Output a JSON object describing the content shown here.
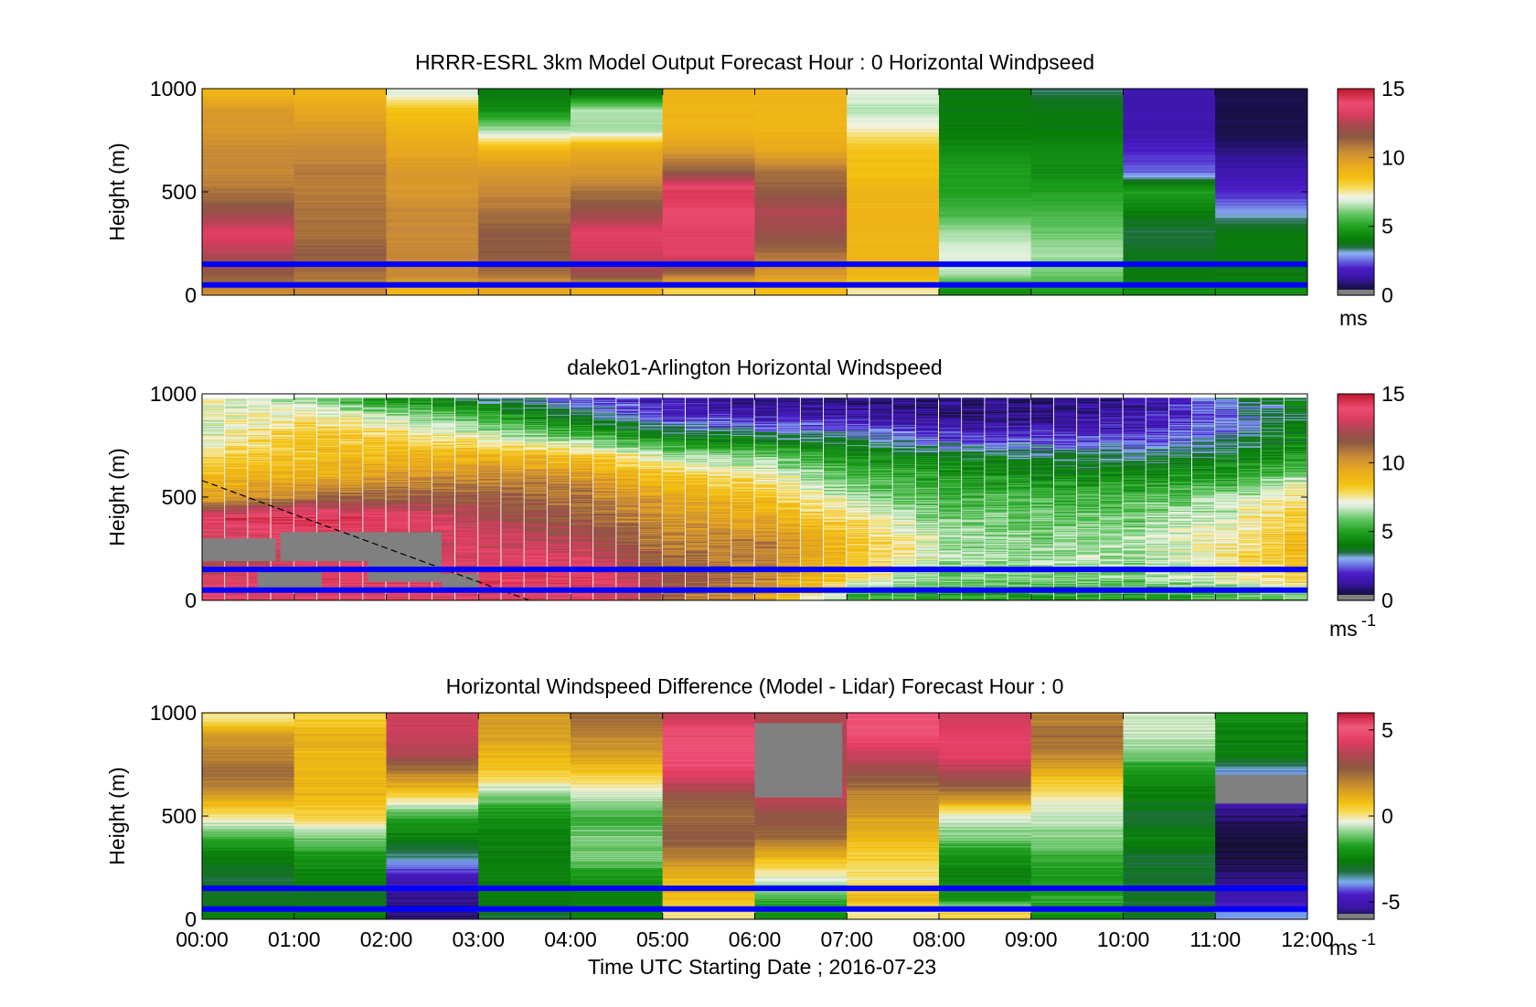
{
  "chart_data": [
    {
      "type": "heatmap",
      "title": "HRRR-ESRL 3km Model Output   Forecast Hour : 0 Horizontal Windpseed",
      "xlabel": "",
      "ylabel": "Height (m)",
      "ylim": [
        0,
        1000
      ],
      "yticks": [
        "0",
        "500",
        "1000"
      ],
      "xlim": [
        0,
        12
      ],
      "colorbar": {
        "ticks": [
          "0",
          "5",
          "10",
          "15"
        ],
        "range": [
          0,
          15
        ],
        "unit_label": "ms",
        "unit_superscript": ""
      },
      "colormap": "windspeed",
      "levels": [
        0,
        50,
        150,
        250,
        350,
        450,
        550,
        650,
        750,
        850,
        950,
        1000
      ],
      "columns_x": [
        0,
        1,
        2,
        3,
        4,
        5,
        6,
        7,
        8,
        9,
        10,
        11,
        12
      ],
      "values_by_column": [
        [
          10.5,
          11.5,
          12.5,
          13.5,
          12.0,
          11.0,
          10.5,
          10.5,
          10.0,
          10.0,
          9.0
        ],
        [
          10.5,
          11.0,
          11.5,
          11.0,
          11.0,
          10.8,
          10.8,
          10.5,
          10.0,
          9.5,
          9.0
        ],
        [
          9.0,
          10.5,
          10.5,
          10.5,
          10.5,
          10.0,
          10.0,
          9.5,
          9.0,
          8.5,
          7.0
        ],
        [
          9.5,
          11.0,
          11.5,
          11.5,
          11.0,
          10.5,
          10.0,
          9.0,
          6.5,
          4.5,
          4.0
        ],
        [
          9.0,
          12.0,
          13.0,
          13.5,
          12.0,
          11.0,
          10.0,
          9.5,
          6.5,
          6.5,
          4.0
        ],
        [
          8.0,
          11.0,
          13.5,
          13.5,
          14.0,
          14.5,
          11.5,
          10.0,
          9.0,
          9.0,
          9.0
        ],
        [
          8.5,
          10.0,
          11.0,
          12.0,
          12.5,
          11.5,
          11.0,
          9.5,
          9.0,
          9.0,
          9.0
        ],
        [
          7.5,
          9.0,
          9.0,
          9.0,
          9.0,
          9.0,
          8.5,
          8.5,
          7.5,
          6.5,
          7.0
        ],
        [
          4.5,
          6.5,
          7.0,
          6.5,
          5.5,
          5.0,
          5.0,
          4.5,
          4.0,
          4.0,
          4.0
        ],
        [
          5.0,
          6.0,
          6.5,
          6.0,
          5.5,
          5.0,
          4.5,
          4.5,
          4.0,
          4.0,
          3.5
        ],
        [
          4.5,
          4.0,
          3.8,
          3.5,
          4.0,
          5.0,
          2.5,
          2.0,
          1.5,
          1.5,
          1.5
        ],
        [
          4.5,
          4.0,
          4.0,
          4.0,
          3.0,
          2.0,
          1.5,
          1.0,
          0.5,
          0.5,
          0.5
        ]
      ],
      "hlines": [
        150,
        50
      ],
      "hline_color": "#0000ff"
    },
    {
      "type": "heatmap",
      "title": "dalek01-Arlington  Horizontal Windspeed",
      "xlabel": "",
      "ylabel": "Height (m)",
      "ylim": [
        0,
        1000
      ],
      "yticks": [
        "0",
        "500",
        "1000"
      ],
      "xlim": [
        0,
        12
      ],
      "colorbar": {
        "ticks": [
          "0",
          "5",
          "10",
          "15"
        ],
        "range": [
          0,
          15
        ],
        "unit_label": "ms",
        "unit_superscript": "-1"
      },
      "colormap": "windspeed",
      "profile_start": 0,
      "profile_step": 0.25,
      "data_end": 11.9,
      "levels": [
        0,
        50,
        150,
        250,
        350,
        450,
        550,
        650,
        750,
        850,
        950,
        1000
      ],
      "profile_anchors_x": [
        0,
        1,
        2,
        3,
        4,
        5,
        6,
        7,
        8,
        9,
        10,
        11,
        11.9
      ],
      "profile_anchors": [
        [
          13.5,
          13.5,
          12.0,
          13.0,
          14.0,
          9.5,
          9.0,
          8.0,
          7.0,
          7.0,
          7.0
        ],
        [
          13.5,
          14.0,
          13.0,
          13.5,
          14.5,
          11.0,
          9.0,
          8.5,
          8.5,
          7.5,
          6.5
        ],
        [
          13.5,
          14.0,
          13.0,
          13.5,
          14.0,
          11.5,
          10.0,
          9.0,
          8.0,
          6.5,
          4.5
        ],
        [
          13.5,
          14.0,
          13.5,
          13.0,
          12.5,
          11.5,
          10.5,
          9.0,
          7.0,
          5.0,
          3.5
        ],
        [
          13.5,
          14.0,
          13.5,
          12.5,
          11.5,
          11.0,
          10.0,
          8.5,
          5.5,
          3.5,
          2.5
        ],
        [
          11.5,
          12.0,
          11.0,
          10.5,
          10.0,
          9.5,
          8.5,
          6.5,
          4.0,
          2.0,
          1.5
        ],
        [
          9.5,
          10.5,
          10.5,
          10.5,
          9.5,
          8.5,
          7.5,
          6.0,
          3.5,
          1.5,
          1.0
        ],
        [
          5.5,
          7.5,
          8.5,
          8.5,
          7.5,
          6.5,
          5.5,
          4.5,
          3.0,
          1.5,
          1.0
        ],
        [
          5.0,
          6.0,
          6.5,
          6.5,
          6.0,
          5.5,
          5.0,
          4.0,
          2.0,
          1.0,
          1.0
        ],
        [
          5.0,
          6.0,
          6.5,
          6.0,
          6.0,
          5.5,
          4.5,
          3.5,
          2.0,
          1.0,
          1.0
        ],
        [
          5.0,
          6.0,
          6.5,
          6.5,
          6.0,
          5.5,
          4.5,
          3.5,
          2.0,
          1.5,
          1.0
        ],
        [
          5.5,
          7.0,
          7.5,
          7.5,
          7.0,
          6.5,
          5.0,
          4.0,
          3.0,
          2.5,
          3.0
        ],
        [
          6.0,
          8.5,
          9.0,
          9.0,
          8.5,
          8.0,
          6.5,
          5.0,
          4.5,
          4.0,
          4.0
        ]
      ],
      "missing_blocks": [
        {
          "x": [
            0.0,
            0.8
          ],
          "y": [
            190,
            300
          ]
        },
        {
          "x": [
            0.85,
            2.6
          ],
          "y": [
            190,
            330
          ]
        },
        {
          "x": [
            1.8,
            2.6
          ],
          "y": [
            90,
            190
          ]
        },
        {
          "x": [
            0.6,
            1.3
          ],
          "y": [
            50,
            160
          ]
        },
        {
          "x": [
            2.6,
            3.0
          ],
          "y": [
            50,
            130
          ]
        }
      ],
      "annotation_line": {
        "x": [
          0.0,
          3.55
        ],
        "y": [
          580,
          0
        ],
        "style": "dashed"
      },
      "hlines": [
        150,
        50
      ],
      "hline_color": "#0000ff"
    },
    {
      "type": "heatmap",
      "title": "Horizontal Windspeed Difference (Model - Lidar) Forecast Hour : 0",
      "xlabel": "Time UTC  Starting Date ; 2016-07-23",
      "ylabel": "Height (m)",
      "ylim": [
        0,
        1000
      ],
      "yticks": [
        "0",
        "500",
        "1000"
      ],
      "xlim": [
        0,
        12
      ],
      "xticks": [
        "00:00",
        "01:00",
        "02:00",
        "03:00",
        "04:00",
        "05:00",
        "06:00",
        "07:00",
        "08:00",
        "09:00",
        "10:00",
        "11:00",
        "12:00"
      ],
      "colorbar": {
        "ticks": [
          "-5",
          "0",
          "5"
        ],
        "range": [
          -6,
          6
        ],
        "unit_label": "ms",
        "unit_superscript": "-1"
      },
      "colormap": "difference",
      "levels": [
        0,
        50,
        150,
        250,
        350,
        450,
        550,
        650,
        750,
        850,
        950,
        1000
      ],
      "columns_x": [
        0,
        1,
        2,
        3,
        4,
        5,
        6,
        7,
        8,
        9,
        10,
        11,
        12
      ],
      "values_by_column": [
        [
          -2.5,
          -3.0,
          -3.0,
          -2.5,
          -1.5,
          0.0,
          1.5,
          2.5,
          2.0,
          1.5,
          0.0
        ],
        [
          -2.5,
          -3.0,
          -2.5,
          -2.0,
          -1.0,
          0.5,
          1.0,
          1.0,
          1.0,
          1.0,
          0.5
        ],
        [
          -5.5,
          -5.5,
          -5.0,
          -3.5,
          -2.5,
          -1.5,
          0.5,
          2.0,
          3.5,
          4.0,
          4.0
        ],
        [
          -3.0,
          -2.5,
          -2.5,
          -2.5,
          -2.5,
          -2.0,
          -1.0,
          0.5,
          1.0,
          1.5,
          1.5
        ],
        [
          -2.5,
          -2.5,
          -2.0,
          -1.0,
          -1.0,
          -1.5,
          -0.5,
          0.5,
          1.5,
          2.0,
          2.5
        ],
        [
          0.0,
          1.0,
          1.0,
          2.0,
          3.0,
          2.5,
          3.0,
          4.5,
          5.0,
          5.0,
          4.0
        ],
        [
          -2.0,
          -1.5,
          -0.5,
          1.0,
          2.5,
          3.0,
          4.0,
          3.5,
          3.5,
          3.5,
          3.5
        ],
        [
          0.0,
          1.0,
          0.0,
          0.5,
          1.0,
          1.5,
          2.0,
          3.0,
          4.0,
          5.0,
          5.0
        ],
        [
          0.5,
          -2.0,
          -2.5,
          -2.0,
          -1.0,
          -0.5,
          2.0,
          3.5,
          4.5,
          4.5,
          4.0
        ],
        [
          -2.0,
          -1.5,
          -2.0,
          -1.5,
          -1.0,
          -0.5,
          0.0,
          1.0,
          2.0,
          2.5,
          2.0
        ],
        [
          -3.0,
          -3.0,
          -3.0,
          -3.0,
          -2.5,
          -3.0,
          -2.5,
          -2.0,
          -1.0,
          -0.5,
          -0.5
        ],
        [
          -4.0,
          -5.0,
          -5.5,
          -6.0,
          -6.0,
          -5.5,
          -5.0,
          -4.0,
          -2.5,
          -2.5,
          -2.0
        ]
      ],
      "missing_blocks": [
        {
          "x": [
            6.0,
            6.95
          ],
          "y": [
            590,
            950
          ]
        },
        {
          "x": [
            11.0,
            12.0
          ],
          "y": [
            560,
            700
          ]
        }
      ],
      "hlines": [
        150,
        50
      ],
      "hline_color": "#0000ff"
    }
  ],
  "colormaps": {
    "windspeed": {
      "stops": [
        [
          0.0,
          "#14102e"
        ],
        [
          0.6,
          "#1a1250"
        ],
        [
          1.3,
          "#3a16a6"
        ],
        [
          2.0,
          "#4c1cc8"
        ],
        [
          2.6,
          "#6a72e2"
        ],
        [
          3.1,
          "#8fb4f4"
        ],
        [
          3.5,
          "#1f6e40"
        ],
        [
          4.0,
          "#087a08"
        ],
        [
          5.0,
          "#1ea01e"
        ],
        [
          6.0,
          "#6ac86a"
        ],
        [
          6.8,
          "#d2ecd0"
        ],
        [
          7.2,
          "#f2f2e6"
        ],
        [
          7.8,
          "#f5dc60"
        ],
        [
          8.5,
          "#f4c010"
        ],
        [
          9.5,
          "#e9a81e"
        ],
        [
          10.5,
          "#c88a38"
        ],
        [
          11.5,
          "#8c5a42"
        ],
        [
          12.3,
          "#a44a4e"
        ],
        [
          13.2,
          "#dc3c60"
        ],
        [
          14.0,
          "#ec4c70"
        ],
        [
          15.0,
          "#c01830"
        ]
      ],
      "missing_color": "#808080"
    },
    "difference": {
      "stops": [
        [
          -6.0,
          "#14102e"
        ],
        [
          -5.3,
          "#3a16a6"
        ],
        [
          -4.5,
          "#4c1cc8"
        ],
        [
          -3.8,
          "#7db0f0"
        ],
        [
          -3.2,
          "#1f6e40"
        ],
        [
          -2.6,
          "#087a08"
        ],
        [
          -1.7,
          "#1ea01e"
        ],
        [
          -1.0,
          "#7ccc7c"
        ],
        [
          -0.3,
          "#eef2e6"
        ],
        [
          0.2,
          "#f6dc60"
        ],
        [
          0.8,
          "#f4c010"
        ],
        [
          1.8,
          "#c8902e"
        ],
        [
          2.8,
          "#8c5a42"
        ],
        [
          3.6,
          "#b04652"
        ],
        [
          4.4,
          "#e43c64"
        ],
        [
          5.2,
          "#f05a7c"
        ],
        [
          6.0,
          "#c01830"
        ]
      ],
      "missing_color": "#808080"
    }
  }
}
